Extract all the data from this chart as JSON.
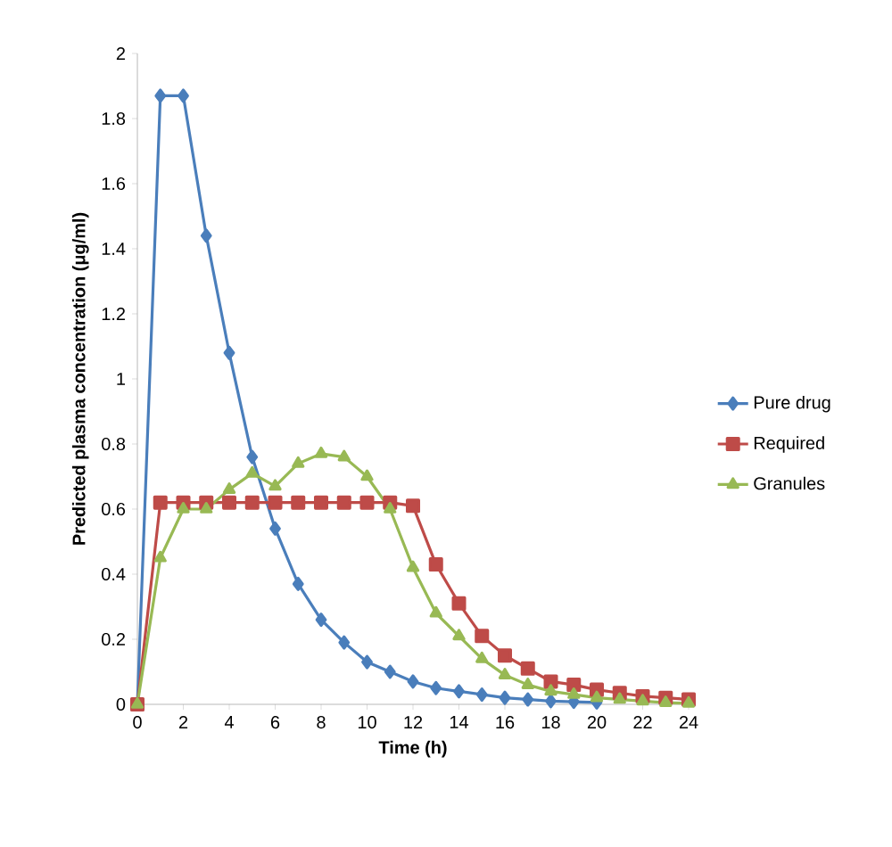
{
  "chart_data": {
    "type": "line",
    "xlabel": "Time (h)",
    "ylabel": "Predicted plasma concentration (μg/ml)",
    "x": [
      0,
      1,
      2,
      3,
      4,
      5,
      6,
      7,
      8,
      9,
      10,
      11,
      12,
      13,
      14,
      15,
      16,
      17,
      18,
      19,
      20,
      21,
      22,
      23,
      24
    ],
    "xlim": [
      0,
      24
    ],
    "xticks": [
      0,
      2,
      4,
      6,
      8,
      10,
      12,
      14,
      16,
      18,
      20,
      22,
      24
    ],
    "ylim": [
      0,
      2
    ],
    "yticks": [
      0,
      0.2,
      0.4,
      0.6,
      0.8,
      1,
      1.2,
      1.4,
      1.6,
      1.8,
      2
    ],
    "legend": "right",
    "grid": false,
    "line_style": "solid",
    "series": [
      {
        "name": "Pure drug",
        "color": "#4a7ebb",
        "marker": "diamond",
        "values": [
          0,
          1.87,
          1.87,
          1.44,
          1.08,
          0.76,
          0.54,
          0.37,
          0.26,
          0.19,
          0.13,
          0.1,
          0.07,
          0.05,
          0.04,
          0.03,
          0.02,
          0.015,
          0.01,
          0.008,
          0.006,
          null,
          null,
          null,
          null
        ]
      },
      {
        "name": "Required",
        "color": "#be4b48",
        "marker": "square",
        "values": [
          0,
          0.62,
          0.62,
          0.62,
          0.62,
          0.62,
          0.62,
          0.62,
          0.62,
          0.62,
          0.62,
          0.62,
          0.61,
          0.43,
          0.31,
          0.21,
          0.15,
          0.11,
          0.07,
          0.06,
          0.045,
          0.035,
          0.025,
          0.02,
          0.015
        ]
      },
      {
        "name": "Granules",
        "color": "#98b954",
        "marker": "triangle",
        "values": [
          0,
          0.45,
          0.6,
          0.6,
          0.66,
          0.71,
          0.67,
          0.74,
          0.77,
          0.76,
          0.7,
          0.6,
          0.42,
          0.28,
          0.21,
          0.14,
          0.09,
          0.06,
          0.04,
          0.03,
          0.02,
          0.015,
          0.01,
          0.005,
          0.003
        ]
      }
    ]
  }
}
